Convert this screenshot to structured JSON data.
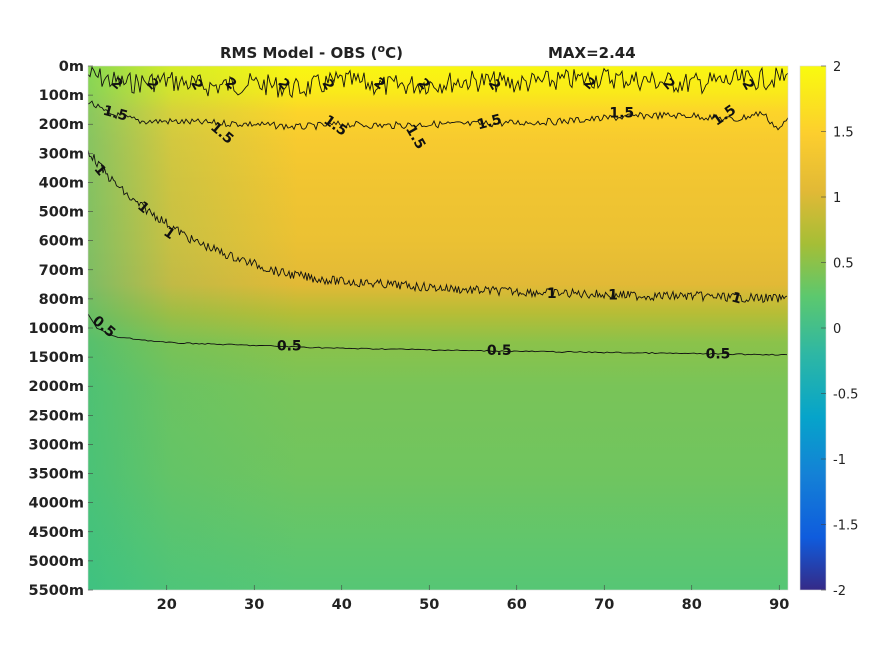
{
  "chart_data": {
    "type": "heatmap",
    "title": "RMS Model - OBS (",
    "title_superscript": "o",
    "title_suffix": "C)",
    "max_label": "MAX=2.44",
    "x_ticks": [
      20,
      30,
      40,
      50,
      60,
      70,
      80,
      90
    ],
    "x_range": [
      11,
      91
    ],
    "y_tick_labels": [
      "0m",
      "100m",
      "200m",
      "300m",
      "400m",
      "500m",
      "600m",
      "700m",
      "800m",
      "1000m",
      "1500m",
      "2000m",
      "2500m",
      "3000m",
      "3500m",
      "4000m",
      "4500m",
      "5000m",
      "5500m"
    ],
    "y_depths": [
      0,
      100,
      200,
      300,
      400,
      500,
      600,
      700,
      800,
      1000,
      1500,
      2000,
      2500,
      3000,
      3500,
      4000,
      4500,
      5000,
      5500
    ],
    "colorbar": {
      "range": [
        -2,
        2
      ],
      "ticks": [
        2,
        1.5,
        1,
        0.5,
        0,
        -0.5,
        -1,
        -1.5,
        -2
      ],
      "tick_labels": [
        "2",
        "1.5",
        "1",
        "0.5",
        "0",
        "-0.5",
        "-1",
        "-1.5",
        "-2"
      ],
      "colormap": "parula"
    },
    "contour_levels": [
      0.5,
      1,
      1.5,
      2
    ],
    "contour_labels": {
      "c2": "2",
      "c15": "1.5",
      "c1": "1",
      "c05": "0.5"
    },
    "contours": {
      "level_2": {
        "x": [
          11,
          15,
          20,
          25,
          30,
          35,
          40,
          45,
          50,
          55,
          60,
          65,
          70,
          75,
          80,
          85,
          91
        ],
        "depth_index": [
          0.3,
          0.6,
          0.5,
          0.7,
          0.6,
          0.8,
          0.5,
          0.7,
          0.6,
          0.5,
          0.6,
          0.5,
          0.4,
          0.5,
          0.6,
          0.5,
          0.4
        ]
      },
      "level_1_5": {
        "x": [
          11,
          13,
          17,
          20,
          25,
          30,
          35,
          40,
          45,
          50,
          55,
          60,
          65,
          70,
          75,
          80,
          85,
          88,
          90,
          91
        ],
        "depth_index": [
          1.2,
          1.6,
          1.9,
          1.9,
          1.95,
          2.0,
          2.1,
          2.0,
          2.05,
          2.0,
          2.0,
          1.95,
          1.9,
          1.8,
          1.7,
          1.7,
          1.85,
          1.6,
          2.2,
          1.8
        ]
      },
      "level_1": {
        "x": [
          11,
          13,
          16,
          20,
          23,
          27,
          30,
          33,
          37,
          40,
          45,
          50,
          55,
          60,
          65,
          70,
          75,
          80,
          85,
          91
        ],
        "depth_index": [
          2.9,
          3.7,
          4.6,
          5.4,
          6.0,
          6.5,
          6.8,
          7.1,
          7.3,
          7.4,
          7.5,
          7.6,
          7.7,
          7.75,
          7.8,
          7.85,
          7.9,
          7.9,
          7.95,
          8.0
        ]
      },
      "level_0_5": {
        "x": [
          11,
          12,
          14,
          17,
          20,
          25,
          30,
          35,
          40,
          45,
          50,
          55,
          60,
          65,
          70,
          75,
          80,
          85,
          91
        ],
        "depth_index": [
          8.5,
          9.0,
          9.3,
          9.4,
          9.5,
          9.55,
          9.6,
          9.65,
          9.7,
          9.72,
          9.75,
          9.78,
          9.8,
          9.82,
          9.84,
          9.86,
          9.88,
          9.9,
          9.92
        ]
      }
    },
    "field_by_depth": [
      {
        "depth_index": 0,
        "value": 1.95
      },
      {
        "depth_index": 0.9,
        "value": 1.8
      },
      {
        "depth_index": 1.6,
        "value": 1.55
      },
      {
        "depth_index": 2.6,
        "value": 1.4
      },
      {
        "depth_index": 4,
        "value": 1.3
      },
      {
        "depth_index": 6,
        "value": 1.2
      },
      {
        "depth_index": 7.5,
        "value": 1.05
      },
      {
        "depth_index": 8.5,
        "value": 0.75
      },
      {
        "depth_index": 9.5,
        "value": 0.5
      },
      {
        "depth_index": 11,
        "value": 0.4
      },
      {
        "depth_index": 14,
        "value": 0.35
      },
      {
        "depth_index": 18,
        "value": 0.18
      }
    ],
    "west_edge_reduction": 0.35
  }
}
